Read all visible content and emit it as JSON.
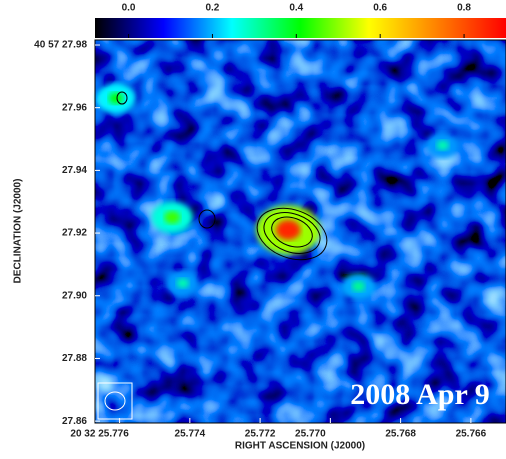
{
  "chart_data": {
    "type": "image",
    "xlabel": "RIGHT ASCENSION (J2000)",
    "ylabel": "DECLINATION (J2000)",
    "annotation": "2008 Apr 9",
    "xlim": [
      25.7767,
      25.765
    ],
    "ylim": [
      27.8594,
      27.9816
    ],
    "xticks": [
      {
        "value": 25.776,
        "label": "20 32 25.776"
      },
      25.774,
      25.772,
      {
        "value": 25.77,
        "label": "25.770"
      },
      25.768,
      25.766
    ],
    "yticks": [
      {
        "value": 27.98,
        "label": "40 57 27.98"
      },
      27.96,
      27.94,
      27.92,
      {
        "value": 27.9,
        "label": "27.90"
      },
      27.88,
      27.86
    ],
    "clim": [
      -0.08,
      0.9
    ],
    "cticks": [
      {
        "value": 0,
        "label": "0.0"
      },
      0.2,
      0.4,
      0.6,
      0.8
    ],
    "colormap": [
      "#000000",
      "#0000ff",
      "#00ffff",
      "#00ff00",
      "#ffff00",
      "#ff8000",
      "#ff0000"
    ],
    "features": {
      "x": [
        25.7712,
        25.7745,
        25.7761,
        25.7742,
        25.7692,
        25.7668
      ],
      "y": [
        27.921,
        27.925,
        27.963,
        27.904,
        27.903,
        27.948
      ],
      "values": [
        0.85,
        0.45,
        0.4,
        0.3,
        0.32,
        0.3
      ]
    }
  }
}
